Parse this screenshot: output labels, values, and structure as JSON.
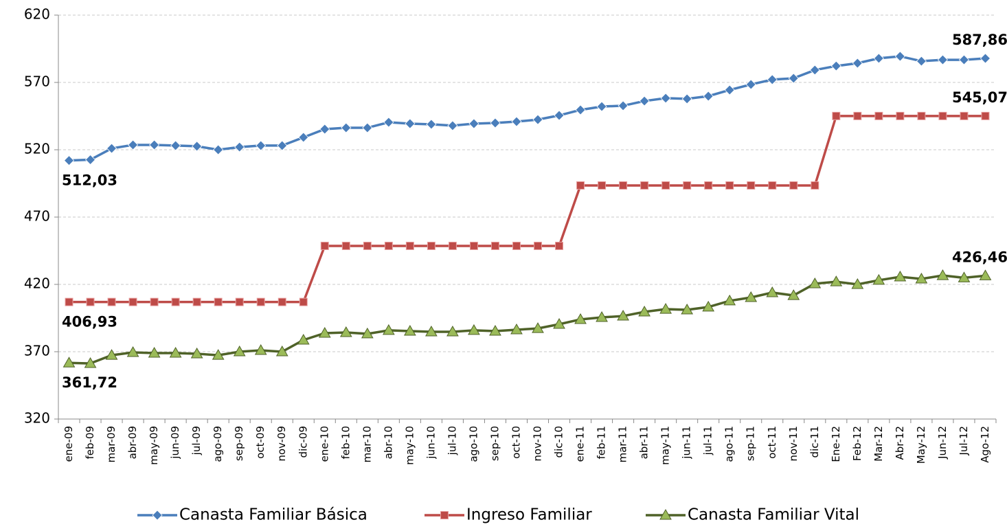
{
  "chart_data": {
    "type": "line",
    "categories": [
      "ene-09",
      "feb-09",
      "mar-09",
      "abr-09",
      "may-09",
      "jun-09",
      "jul-09",
      "ago-09",
      "sep-09",
      "oct-09",
      "nov-09",
      "dic-09",
      "ene-10",
      "feb-10",
      "mar-10",
      "abr-10",
      "may-10",
      "jun-10",
      "jul-10",
      "ago-10",
      "sep-10",
      "oct-10",
      "nov-10",
      "dic-10",
      "ene-11",
      "feb-11",
      "mar-11",
      "abr-11",
      "may-11",
      "jun-11",
      "jul-11",
      "ago-11",
      "sep-11",
      "oct-11",
      "nov-11",
      "dic-11",
      "Ene-12",
      "Feb-12",
      "Mar-12",
      "Abr-12",
      "May-12",
      "Jun-12",
      "Jul-12",
      "Ago-12"
    ],
    "series": [
      {
        "name": "Canasta Familiar Básica",
        "color": "#4a7ebb",
        "marker": "diamond",
        "values": [
          512.03,
          512.6,
          521.0,
          523.6,
          523.6,
          523.1,
          522.6,
          520.0,
          522.0,
          523.1,
          523.1,
          529.2,
          535.3,
          536.3,
          536.3,
          540.4,
          539.4,
          538.9,
          537.9,
          539.4,
          539.9,
          540.9,
          542.4,
          545.5,
          549.6,
          552.1,
          552.7,
          556.2,
          558.3,
          557.8,
          559.8,
          564.4,
          568.5,
          572.1,
          573.1,
          579.2,
          582.2,
          584.3,
          587.9,
          589.4,
          585.8,
          586.8,
          586.8,
          587.86
        ],
        "value_labels": [
          "512,03",
          null,
          null,
          null,
          null,
          null,
          null,
          null,
          null,
          null,
          null,
          null,
          null,
          null,
          null,
          null,
          null,
          null,
          null,
          null,
          null,
          null,
          null,
          null,
          null,
          null,
          null,
          null,
          null,
          null,
          null,
          null,
          null,
          null,
          null,
          null,
          null,
          null,
          null,
          null,
          null,
          null,
          null,
          "587,86"
        ]
      },
      {
        "name": "Ingreso Familiar",
        "color": "#be4b48",
        "marker": "square",
        "values": [
          406.93,
          406.93,
          406.93,
          406.93,
          406.93,
          406.93,
          406.93,
          406.93,
          406.93,
          406.93,
          406.93,
          406.93,
          448.6,
          448.6,
          448.6,
          448.6,
          448.6,
          448.6,
          448.6,
          448.6,
          448.6,
          448.6,
          448.6,
          448.6,
          493.5,
          493.5,
          493.5,
          493.5,
          493.5,
          493.5,
          493.5,
          493.5,
          493.5,
          493.5,
          493.5,
          493.5,
          545.07,
          545.07,
          545.07,
          545.07,
          545.07,
          545.07,
          545.07,
          545.07
        ],
        "value_labels": [
          "406,93",
          null,
          null,
          null,
          null,
          null,
          null,
          null,
          null,
          null,
          null,
          null,
          null,
          null,
          null,
          null,
          null,
          null,
          null,
          null,
          null,
          null,
          null,
          null,
          null,
          null,
          null,
          null,
          null,
          null,
          null,
          null,
          null,
          null,
          null,
          null,
          null,
          null,
          null,
          null,
          null,
          null,
          null,
          "545,07"
        ]
      },
      {
        "name": "Canasta Familiar Vital",
        "color": "#4f6228",
        "marker_color": "#9bbb59",
        "marker": "triangle",
        "values": [
          361.72,
          361.3,
          367.4,
          369.5,
          369.0,
          369.0,
          368.5,
          367.4,
          370.0,
          371.0,
          370.0,
          378.7,
          383.8,
          384.3,
          383.3,
          385.9,
          385.3,
          384.8,
          384.8,
          385.9,
          385.3,
          386.3,
          387.3,
          390.4,
          394.0,
          395.5,
          396.5,
          399.6,
          401.6,
          401.1,
          403.2,
          407.8,
          410.3,
          413.9,
          411.8,
          420.5,
          422.0,
          420.0,
          423.1,
          425.6,
          424.1,
          426.6,
          424.9,
          426.46
        ],
        "value_labels": [
          "361,72",
          null,
          null,
          null,
          null,
          null,
          null,
          null,
          null,
          null,
          null,
          null,
          null,
          null,
          null,
          null,
          null,
          null,
          null,
          null,
          null,
          null,
          null,
          null,
          null,
          null,
          null,
          null,
          null,
          null,
          null,
          null,
          null,
          null,
          null,
          null,
          null,
          null,
          null,
          null,
          null,
          null,
          null,
          "426,46"
        ]
      }
    ],
    "ylim": [
      320,
      620
    ],
    "yticks": [
      320,
      370,
      420,
      470,
      520,
      570,
      620
    ],
    "grid": true,
    "legend": "bottom"
  }
}
